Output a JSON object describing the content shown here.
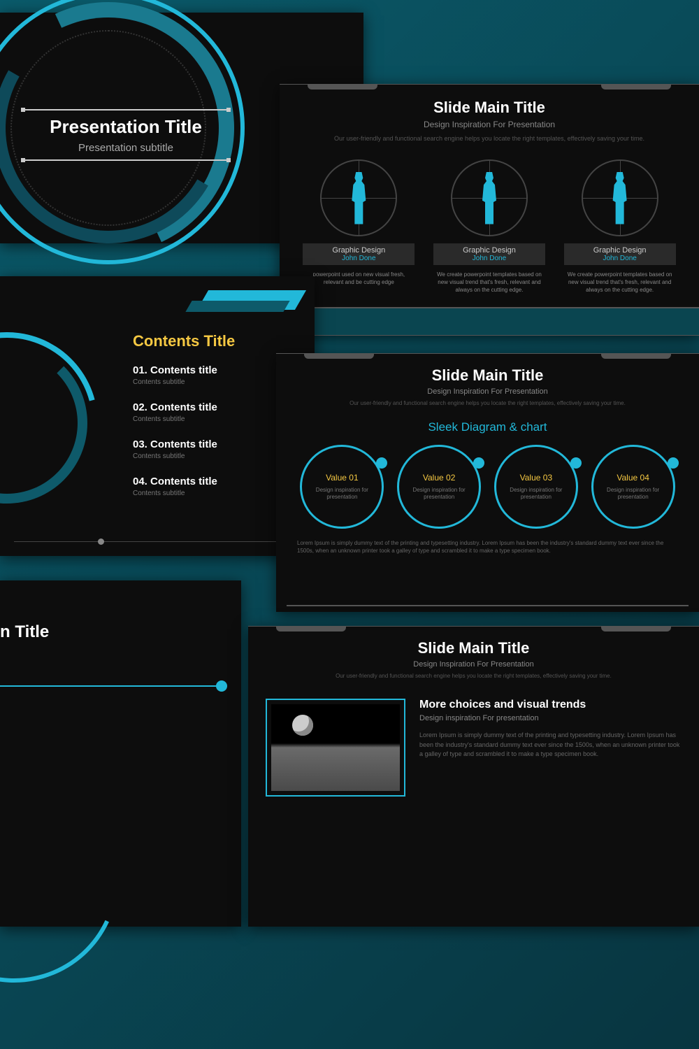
{
  "colors": {
    "bg_dark": "#0d0d0d",
    "accent": "#22b8d9",
    "accent_dark": "#0e5a6a",
    "teal_bg": "#0a5a6a",
    "yellow": "#f5c842",
    "text": "#ffffff",
    "text_muted": "#888888",
    "text_faint": "#555555",
    "border": "#555555"
  },
  "slide1": {
    "title": "Presentation Title",
    "subtitle": "Presentation subtitle"
  },
  "slide2": {
    "title": "Slide Main Title",
    "subtitle": "Design Inspiration For Presentation",
    "desc": "Our user-friendly and functional search engine helps you locate the right templates, effectively saving your time.",
    "cols": [
      {
        "label1": "Graphic Design",
        "label2": "John Done",
        "desc": "powerpoint used on new visual fresh, relevant and be cutting edge"
      },
      {
        "label1": "Graphic Design",
        "label2": "John Done",
        "desc": "We create powerpoint templates based on new visual trend that's fresh, relevant and always on the cutting edge."
      },
      {
        "label1": "Graphic Design",
        "label2": "John Done",
        "desc": "We create powerpoint templates based on new visual trend that's fresh, relevant and always on the cutting edge."
      }
    ]
  },
  "slide3": {
    "heading": "Contents Title",
    "items": [
      {
        "num": "01. Contents title",
        "sub": "Contents subtitle"
      },
      {
        "num": "02. Contents title",
        "sub": "Contents subtitle"
      },
      {
        "num": "03. Contents title",
        "sub": "Contents subtitle"
      },
      {
        "num": "04. Contents title",
        "sub": "Contents subtitle"
      }
    ]
  },
  "slide4": {
    "title": "Slide Main Title",
    "subtitle": "Design Inspiration For Presentation",
    "desc": "Our user-friendly and functional search engine helps you locate the right templates, effectively saving your time.",
    "section": "Sleek Diagram & chart",
    "circles": [
      {
        "v": "Value ",
        "n": "01",
        "d": "Design inspiration for presentation"
      },
      {
        "v": "Value ",
        "n": "02",
        "d": "Design inspiration for presentation"
      },
      {
        "v": "Value ",
        "n": "03",
        "d": "Design inspiration for presentation"
      },
      {
        "v": "Value ",
        "n": "04",
        "d": "Design inspiration for presentation"
      }
    ],
    "lorem": "Lorem Ipsum is simply dummy text of the printing and typesetting industry. Lorem Ipsum has been the industry's standard dummy text ever since the 1500s, when an unknown printer took a galley of type and scrambled it to make a type specimen book."
  },
  "slide5": {
    "title": "e Main Title"
  },
  "slide6": {
    "title": "Slide Main Title",
    "subtitle": "Design Inspiration For Presentation",
    "desc": "Our user-friendly and functional search engine helps you locate the right templates, effectively saving your time.",
    "block_title": "More choices and visual trends",
    "block_sub": "Design inspiration For presentation",
    "block_desc": "Lorem Ipsum is simply dummy text of the printing and typesetting industry. Lorem Ipsum has been the industry's standard dummy text ever since the 1500s, when an unknown printer took a galley of type and scrambled it to make a type specimen book."
  }
}
